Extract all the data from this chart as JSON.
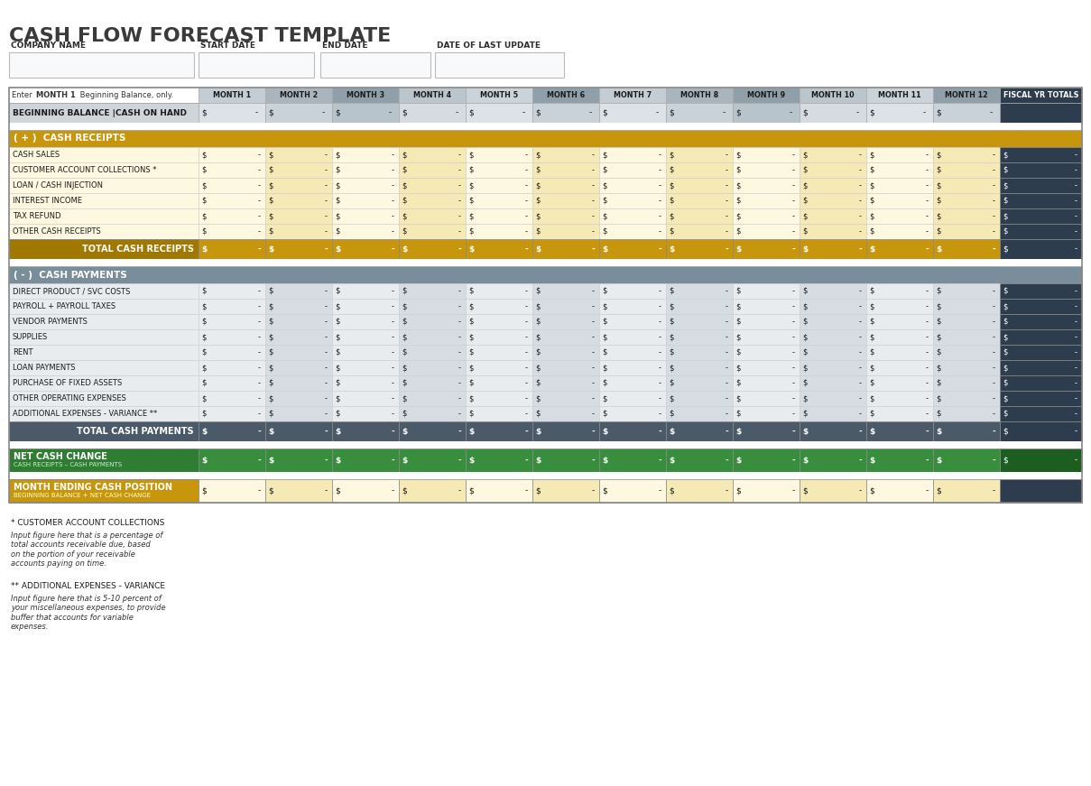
{
  "title": "CASH FLOW FORECAST TEMPLATE",
  "title_color": "#3a3a3a",
  "title_fontsize": 16,
  "header_labels": [
    "COMPANY NAME",
    "START DATE",
    "END DATE",
    "DATE OF LAST UPDATE"
  ],
  "month_headers": [
    "MONTH 1",
    "MONTH 2",
    "MONTH 3",
    "MONTH 4",
    "MONTH 5",
    "MONTH 6",
    "MONTH 7",
    "MONTH 8",
    "MONTH 9",
    "MONTH 10",
    "MONTH 11",
    "MONTH 12",
    "FISCAL YR TOTALS"
  ],
  "enter_label_normal": "Enter ",
  "enter_label_bold": "MONTH 1",
  "enter_label_rest": " Beginning Balance, only.",
  "beginning_balance_label": "BEGINNING BALANCE |CASH ON HAND",
  "section_receipts_label": "( + )  CASH RECEIPTS",
  "section_payments_label": "( - )  CASH PAYMENTS",
  "cash_receipts_rows": [
    "CASH SALES",
    "CUSTOMER ACCOUNT COLLECTIONS *",
    "LOAN / CASH INJECTION",
    "INTEREST INCOME",
    "TAX REFUND",
    "OTHER CASH RECEIPTS"
  ],
  "total_receipts_label": "TOTAL CASH RECEIPTS",
  "cash_payments_rows": [
    "DIRECT PRODUCT / SVC COSTS",
    "PAYROLL + PAYROLL TAXES",
    "VENDOR PAYMENTS",
    "SUPPLIES",
    "RENT",
    "LOAN PAYMENTS",
    "PURCHASE OF FIXED ASSETS",
    "OTHER OPERATING EXPENSES",
    "ADDITIONAL EXPENSES - VARIANCE **"
  ],
  "total_payments_label": "TOTAL CASH PAYMENTS",
  "net_cash_label": "NET CASH CHANGE",
  "net_cash_sublabel": "CASH RECEIPTS – CASH PAYMENTS",
  "month_end_label": "MONTH ENDING CASH POSITION",
  "month_end_sublabel": "BEGINNING BALANCE + NET CASH CHANGE",
  "footnote1_header": "* CUSTOMER ACCOUNT COLLECTIONS",
  "footnote1_text": "Input figure here that is a percentage of\ntotal accounts receivable due, based\non the portion of your receivable\naccounts paying on time.",
  "footnote2_header": "** ADDITIONAL EXPENSES - VARIANCE",
  "footnote2_text": "Input figure here that is 5-10 percent of\nyour miscellaneous expenses, to provide\nbuffer that accounts for variable\nexpenses.",
  "colors": {
    "white": "#ffffff",
    "light_gray": "#f0f0f0",
    "input_box_bg": "#f0f2f5",
    "header_text": "#2c2c2c",
    "month_hdr_1": "#c5cdd4",
    "month_hdr_2": "#aab4bc",
    "month_hdr_3": "#8fa0ab",
    "month_hdr_4": "#bbc5cc",
    "month_hdr_5": "#c9d3d9",
    "month_hdr_6": "#8fa0ab",
    "fiscal_hdr_bg": "#2d3d4e",
    "fiscal_hdr_text": "#ffffff",
    "bb_col1": "#d5dadf",
    "bb_col2": "#c5cdd5",
    "bb_col3": "#b8c2cb",
    "bb_col4": "#d0d7dc",
    "bb_col5": "#dde2e6",
    "bb_col6": "#b8c2cb",
    "bb_fiscal": "#2d3d4e",
    "section_receipts_bg": "#c8960c",
    "section_receipts_text": "#ffffff",
    "receipts_odd": "#fef8e0",
    "receipts_even": "#f5e9b5",
    "receipts_fiscal": "#2d3d4e",
    "receipts_fiscal_text": "#ffffff",
    "total_receipts_bg": "#a07800",
    "total_receipts_text": "#ffffff",
    "total_receipts_cell": "#c8960c",
    "section_payments_bg": "#7a8d9b",
    "section_payments_text": "#ffffff",
    "payments_odd": "#e8ecef",
    "payments_even": "#d5dce2",
    "payments_fiscal": "#2d3d4e",
    "payments_fiscal_text": "#ffffff",
    "total_payments_label_bg": "#4a5a68",
    "total_payments_cell": "#4a5a68",
    "total_payments_text": "#ffffff",
    "total_payments_fiscal": "#2d3d4e",
    "net_cash_label_bg": "#2e7d32",
    "net_cash_cell_bg": "#388e3c",
    "net_cash_fiscal_bg": "#1b5e20",
    "net_cash_text": "#ffffff",
    "month_end_label_bg": "#c8960c",
    "month_end_cell_odd": "#fef8e0",
    "month_end_cell_even": "#f5e9b5",
    "month_end_fiscal_bg": "#2d3d4e",
    "month_end_text": "#ffffff",
    "border": "#c0c0c0",
    "dark_border": "#888888"
  },
  "dollar_sign": "$ ",
  "dash": "-",
  "figsize": [
    12.09,
    8.71
  ],
  "dpi": 100
}
